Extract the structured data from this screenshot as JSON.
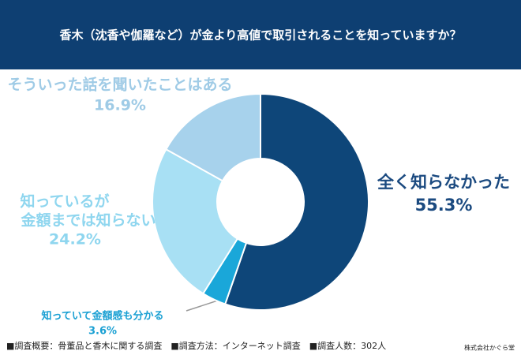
{
  "chart_data": {
    "type": "pie",
    "title": "香木（沈香や伽羅など）が金より高値で取引されることを知っていますか？",
    "categories": [
      [
        "全く知らなかった"
      ],
      [
        "知っていて金額感も分かる"
      ],
      [
        "知っているが",
        "金額までは知らない"
      ],
      [
        "そういった話を聞いたことはある"
      ]
    ],
    "values": [
      55.3,
      3.6,
      24.2,
      16.9
    ],
    "value_labels": [
      "55.3%",
      "3.6%",
      "24.2%",
      "16.9%"
    ],
    "colors": [
      "#0e4679",
      "#1aa7d9",
      "#a8e0f4",
      "#a7d2ec"
    ],
    "label_colors": [
      "#1b4a80",
      "#1aa0d3",
      "#8fd6ef",
      "#9fcbe6"
    ],
    "footnote": "■調査概要：骨董品と香木に関する調査　■調査方法：インターネット調査　■調査人数：302人",
    "source": "株式会社かぐら堂"
  }
}
